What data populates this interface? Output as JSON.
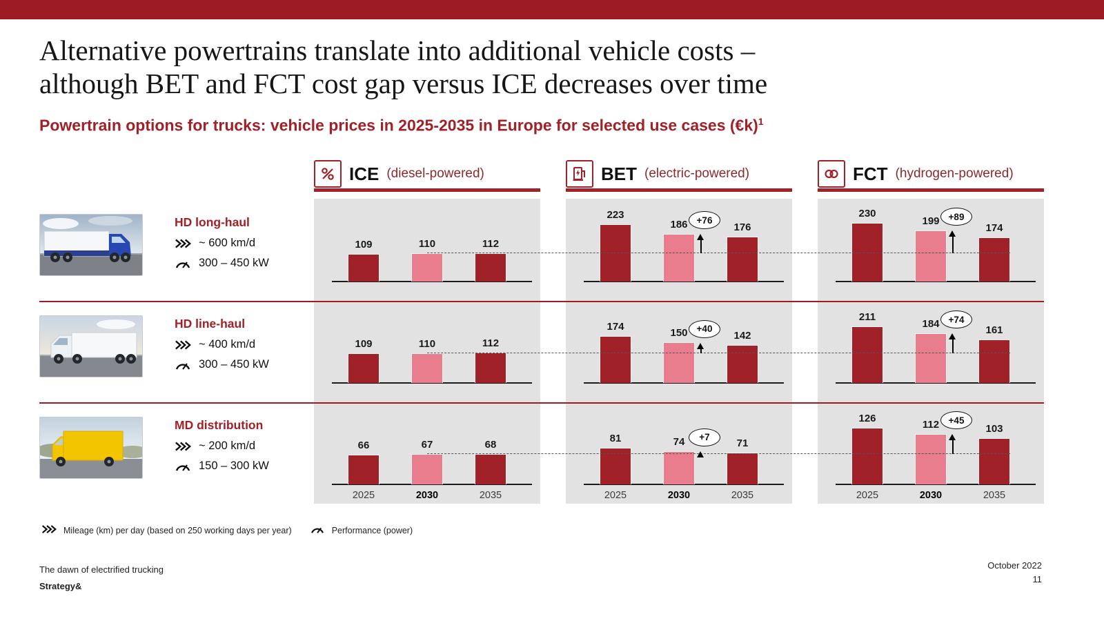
{
  "slide": {
    "title_line1": "Alternative powertrains translate into additional vehicle costs –",
    "title_line2": "although BET and FCT cost gap versus ICE decreases over time",
    "subtitle": "Powertrain options for trucks: vehicle prices in 2025-2035 in Europe for selected use cases (€k)",
    "subtitle_sup": "1"
  },
  "legend": {
    "mileage_label": "Mileage (km) per day (based on 250 working days per year)",
    "performance_label": "Performance (power)"
  },
  "footer": {
    "doc_title": "The dawn of electrified trucking",
    "brand": "Strategy&",
    "date": "October 2022",
    "page": "11"
  },
  "colors": {
    "accent_red": "#9d1c24",
    "bar_dark": "#a02128",
    "bar_pink": "#e97d8d",
    "panel_grey": "#e2e2e2"
  },
  "chart_data": {
    "type": "bar",
    "unit": "€k",
    "title": "Powertrain options for trucks: vehicle prices in 2025-2035 in Europe for selected use cases (€k)",
    "years": [
      "2025",
      "2030",
      "2035"
    ],
    "legend_position": "none",
    "grid": false,
    "powertrains": [
      {
        "id": "ice",
        "name": "ICE",
        "descriptor": "(diesel-powered)"
      },
      {
        "id": "bet",
        "name": "BET",
        "descriptor": "(electric-powered)"
      },
      {
        "id": "fct",
        "name": "FCT",
        "descriptor": "(hydrogen-powered)"
      }
    ],
    "use_cases": [
      {
        "name": "HD long-haul",
        "mileage": "~ 600 km/d",
        "power": "300 – 450 kW",
        "values": {
          "ice": [
            109,
            110,
            112
          ],
          "bet": [
            223,
            186,
            176
          ],
          "fct": [
            230,
            199,
            174
          ]
        },
        "delta_vs_ice_2030": {
          "bet": "+76",
          "fct": "+89"
        }
      },
      {
        "name": "HD line-haul",
        "mileage": "~ 400 km/d",
        "power": "300 – 450 kW",
        "values": {
          "ice": [
            109,
            110,
            112
          ],
          "bet": [
            174,
            150,
            142
          ],
          "fct": [
            211,
            184,
            161
          ]
        },
        "delta_vs_ice_2030": {
          "bet": "+40",
          "fct": "+74"
        }
      },
      {
        "name": "MD distribution",
        "mileage": "~ 200 km/d",
        "power": "150 – 300 kW",
        "values": {
          "ice": [
            66,
            67,
            68
          ],
          "bet": [
            81,
            74,
            71
          ],
          "fct": [
            126,
            112,
            103
          ]
        },
        "delta_vs_ice_2030": {
          "bet": "+7",
          "fct": "+45"
        }
      }
    ]
  }
}
